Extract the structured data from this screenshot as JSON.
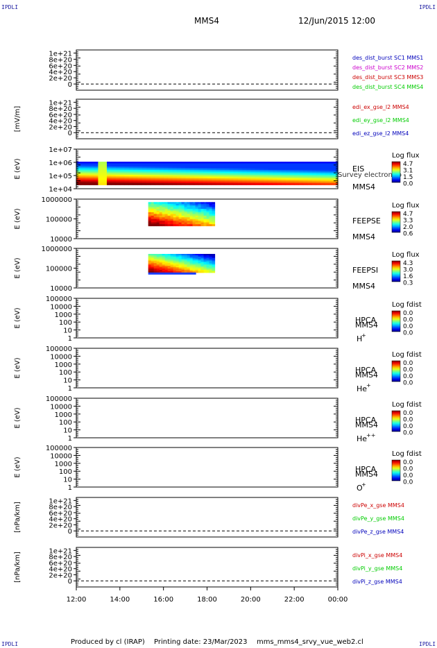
{
  "header": {
    "corner_label": "IPDLI",
    "spacecraft": "MMS4",
    "datetime": "12/Jun/2015 12:00"
  },
  "footer": {
    "produced_by": "Produced by cl (IRAP)",
    "printing_date": "Printing date: 23/Mar/2023",
    "script_name": "mms_mms4_srvy_vue_web2.cl"
  },
  "colors": {
    "red": "#cc0000",
    "magenta": "#cc00cc",
    "green": "#00cc00",
    "blue": "#0000bb",
    "black": "#000000"
  },
  "chart_data": {
    "type": "multi-panel stack plot",
    "x_ticks": [
      "12:00",
      "14:00",
      "16:00",
      "18:00",
      "20:00",
      "22:00",
      "00:00"
    ],
    "xlim_hours": [
      12,
      24
    ],
    "panels": [
      {
        "id": "p1",
        "type": "line",
        "ylabel": "",
        "yticks": [
          "1e+21",
          "8e+20",
          "6e+20",
          "4e+20",
          "2e+20",
          "0"
        ],
        "ytick_values": [
          1e+21,
          8e+20,
          6e+20,
          4e+20,
          2e+20,
          0
        ],
        "ylim": [
          -2e+20,
          1.1e+21
        ],
        "zero_line": true,
        "legend": [
          {
            "text": "des_dist_burst SC1 MMS1",
            "color": "#0000bb"
          },
          {
            "text": "des_dist_burst SC2 MMS2",
            "color": "#cc00cc"
          },
          {
            "text": "des_dist_burst SC3 MMS3",
            "color": "#cc0000"
          },
          {
            "text": "des_dist_burst SC4 MMS4",
            "color": "#00cc00"
          }
        ]
      },
      {
        "id": "p2",
        "type": "line",
        "ylabel": "[mV/m]",
        "yticks": [
          "1e+21",
          "8e+20",
          "6e+20",
          "4e+20",
          "2e+20",
          "0"
        ],
        "ytick_values": [
          1e+21,
          8e+20,
          6e+20,
          4e+20,
          2e+20,
          0
        ],
        "ylim": [
          -2e+20,
          1.1e+21
        ],
        "zero_line": true,
        "legend": [
          {
            "text": "edi_ex_gse_l2 MMS4",
            "color": "#cc0000"
          },
          {
            "text": "edi_ey_gse_l2 MMS4",
            "color": "#00cc00"
          },
          {
            "text": "edi_ez_gse_l2 MMS4",
            "color": "#0000bb"
          }
        ]
      },
      {
        "id": "p3",
        "type": "spectrogram",
        "ylabel": "E (eV)",
        "yticks": [
          "1e+07",
          "1e+06",
          "1e+05",
          "1e+04"
        ],
        "ylog": [
          4,
          7
        ],
        "instrument": "EIS",
        "subtitle": "Survey electron to",
        "sc": "MMS4",
        "cbar_title": "Log flux",
        "cbar_values": [
          "4.7",
          "3.1",
          "1.5",
          "0.0"
        ],
        "data_extent_hours": [
          12,
          24
        ],
        "data_energy_log": [
          4.3,
          6.05
        ]
      },
      {
        "id": "p4",
        "type": "spectrogram",
        "ylabel": "E (eV)",
        "yticks": [
          "1000000",
          "100000",
          "10000"
        ],
        "ylog": [
          4,
          6
        ],
        "instrument": "FEEPSE",
        "sc": "MMS4",
        "cbar_title": "Log flux",
        "cbar_values": [
          "4.7",
          "3.3",
          "2.0",
          "0.6"
        ],
        "data_extent_hours": [
          15.3,
          18.35
        ],
        "data_energy_log": [
          4.65,
          5.85
        ]
      },
      {
        "id": "p5",
        "type": "spectrogram",
        "ylabel": "E (eV)",
        "yticks": [
          "1000000",
          "100000",
          "10000"
        ],
        "ylog": [
          4,
          6
        ],
        "instrument": "FEEPSI",
        "sc": "MMS4",
        "cbar_title": "Log flux",
        "cbar_values": [
          "4.3",
          "3.0",
          "1.6",
          "0.3"
        ],
        "data_extent_hours": [
          15.3,
          18.35
        ],
        "data_energy_log": [
          4.78,
          5.72
        ]
      },
      {
        "id": "p6",
        "type": "spectrogram",
        "ylabel": "E (eV)",
        "yticks": [
          "100000",
          "10000",
          "1000",
          "100",
          "10",
          "1"
        ],
        "ylog": [
          0,
          5
        ],
        "instrument": "HPCA",
        "sc": "MMS4",
        "species": "H",
        "species_sup": "+",
        "cbar_title": "Log fdist",
        "cbar_values": [
          "0.0",
          "0.0",
          "0.0",
          "0.0"
        ]
      },
      {
        "id": "p7",
        "type": "spectrogram",
        "ylabel": "E (eV)",
        "yticks": [
          "100000",
          "10000",
          "1000",
          "100",
          "10",
          "1"
        ],
        "ylog": [
          0,
          5
        ],
        "instrument": "HPCA",
        "sc": "MMS4",
        "species": "He",
        "species_sup": "+",
        "cbar_title": "Log fdist",
        "cbar_values": [
          "0.0",
          "0.0",
          "0.0",
          "0.0"
        ]
      },
      {
        "id": "p8",
        "type": "spectrogram",
        "ylabel": "E (eV)",
        "yticks": [
          "100000",
          "10000",
          "1000",
          "100",
          "10",
          "1"
        ],
        "ylog": [
          0,
          5
        ],
        "instrument": "HPCA",
        "sc": "MMS4",
        "species": "He",
        "species_sup": "++",
        "cbar_title": "Log fdist",
        "cbar_values": [
          "0.0",
          "0.0",
          "0.0",
          "0.0"
        ]
      },
      {
        "id": "p9",
        "type": "spectrogram",
        "ylabel": "E (eV)",
        "yticks": [
          "100000",
          "10000",
          "1000",
          "100",
          "10",
          "1"
        ],
        "ylog": [
          0,
          5
        ],
        "instrument": "HPCA",
        "sc": "MMS4",
        "species": "O",
        "species_sup": "+",
        "cbar_title": "Log fdist",
        "cbar_values": [
          "0.0",
          "0.0",
          "0.0",
          "0.0"
        ]
      },
      {
        "id": "p10",
        "type": "line",
        "ylabel": "[nPa/km]",
        "yticks": [
          "1e+21",
          "8e+20",
          "6e+20",
          "4e+20",
          "2e+20",
          "0"
        ],
        "ytick_values": [
          1e+21,
          8e+20,
          6e+20,
          4e+20,
          2e+20,
          0
        ],
        "ylim": [
          -2e+20,
          1.1e+21
        ],
        "zero_line": true,
        "legend": [
          {
            "text": "divPe_x_gse MMS4",
            "color": "#cc0000"
          },
          {
            "text": "divPe_y_gse MMS4",
            "color": "#00cc00"
          },
          {
            "text": "divPe_z_gse MMS4",
            "color": "#0000bb"
          }
        ]
      },
      {
        "id": "p11",
        "type": "line",
        "ylabel": "[nPa/km]",
        "yticks": [
          "1e+21",
          "8e+20",
          "6e+20",
          "4e+20",
          "2e+20",
          "0"
        ],
        "ytick_values": [
          1e+21,
          8e+20,
          6e+20,
          4e+20,
          2e+20,
          0
        ],
        "ylim": [
          -2e+20,
          1.1e+21
        ],
        "zero_line": true,
        "legend": [
          {
            "text": "divPi_x_gse MMS4",
            "color": "#cc0000"
          },
          {
            "text": "divPi_y_gse MMS4",
            "color": "#00cc00"
          },
          {
            "text": "divPi_z_gse MMS4",
            "color": "#0000bb"
          }
        ]
      }
    ]
  }
}
